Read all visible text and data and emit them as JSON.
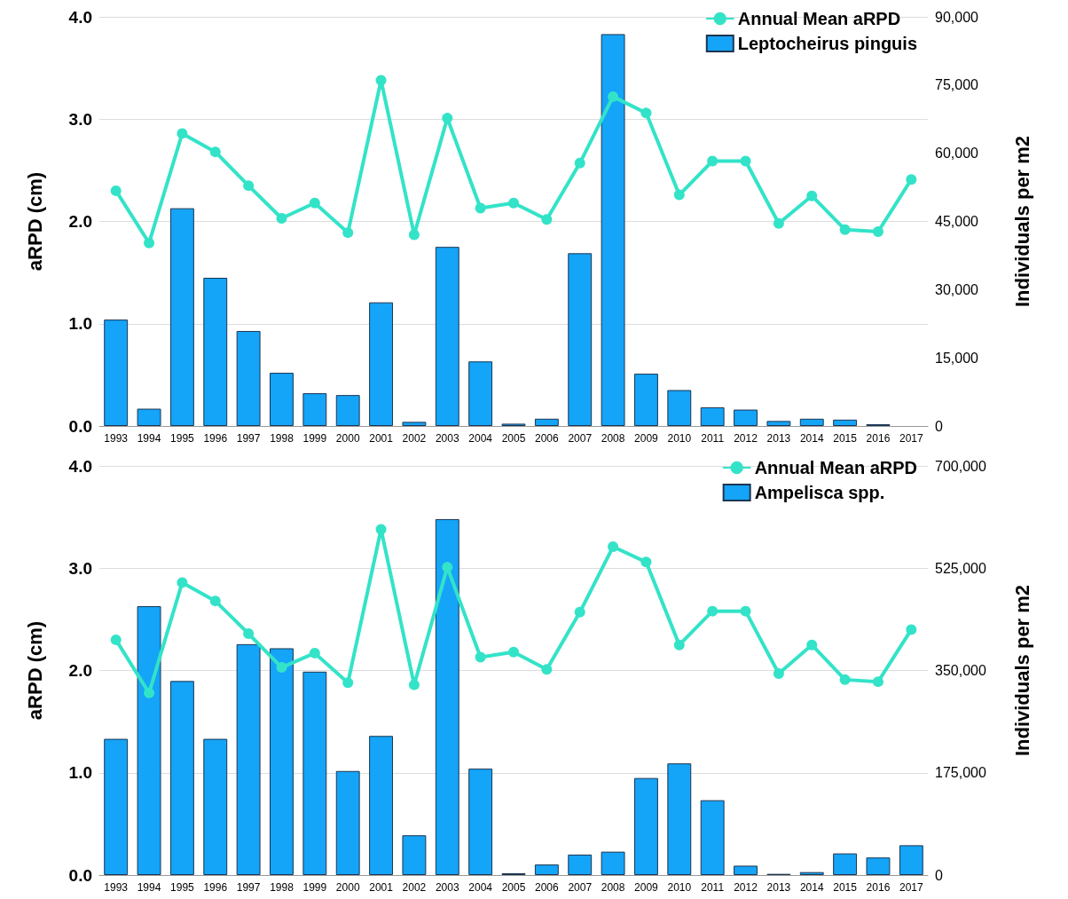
{
  "chart_data": [
    {
      "type": "bar",
      "ylabel": "aRPD (cm)",
      "y2label": "Individuals per m2",
      "categories": [
        "1993",
        "1994",
        "1995",
        "1996",
        "1997",
        "1998",
        "1999",
        "2000",
        "2001",
        "2002",
        "2003",
        "2004",
        "2005",
        "2006",
        "2007",
        "2008",
        "2009",
        "2010",
        "2011",
        "2012",
        "2013",
        "2014",
        "2015",
        "2016",
        "2017"
      ],
      "series": [
        {
          "name": "Annual Mean aRPD",
          "type": "line",
          "color": "#33e3c8",
          "values": [
            2.3,
            1.79,
            2.86,
            2.68,
            2.35,
            2.03,
            2.18,
            1.89,
            3.38,
            1.87,
            3.01,
            2.13,
            2.18,
            2.02,
            2.57,
            3.22,
            3.06,
            2.26,
            2.59,
            2.59,
            1.98,
            2.25,
            1.92,
            1.9,
            2.41
          ]
        },
        {
          "name": "Leptocheirus pinguis",
          "axis": "y2",
          "color": "#14a4f8",
          "values": [
            23400,
            3800,
            47900,
            32600,
            20900,
            11700,
            7200,
            6800,
            27200,
            900,
            39400,
            14200,
            500,
            1600,
            38000,
            86200,
            11500,
            7900,
            4100,
            3600,
            1100,
            1600,
            1400,
            400,
            null
          ]
        }
      ],
      "ylim": [
        0,
        4
      ],
      "yticks": [
        {
          "value": 0,
          "label": "0.0"
        },
        {
          "value": 1,
          "label": "1.0"
        },
        {
          "value": 2,
          "label": "2.0"
        },
        {
          "value": 3,
          "label": "3.0"
        },
        {
          "value": 4,
          "label": "4.0"
        }
      ],
      "y2lim": [
        0,
        90000
      ],
      "y2ticks": [
        0,
        {
          "value": 15000,
          "label": "15,000"
        },
        {
          "value": 30000,
          "label": "30,000"
        },
        {
          "value": 45000,
          "label": "45,000"
        },
        {
          "value": 60000,
          "label": "60,000"
        },
        {
          "value": 75000,
          "label": "75,000"
        },
        {
          "value": 90000,
          "label": "90,000"
        }
      ],
      "grid": "y",
      "legend": "top right",
      "marker": "circle"
    },
    {
      "type": "bar",
      "ylabel": "aRPD (cm)",
      "y2label": "Individuals per m2",
      "categories": [
        "1993",
        "1994",
        "1995",
        "1996",
        "1997",
        "1998",
        "1999",
        "2000",
        "2001",
        "2002",
        "2003",
        "2004",
        "2005",
        "2006",
        "2007",
        "2008",
        "2009",
        "2010",
        "2011",
        "2012",
        "2013",
        "2014",
        "2015",
        "2016",
        "2017"
      ],
      "series": [
        {
          "name": "Annual Mean aRPD",
          "type": "line",
          "color": "#33e3c8",
          "values": [
            2.3,
            1.78,
            2.86,
            2.68,
            2.36,
            2.03,
            2.17,
            1.88,
            3.38,
            1.86,
            3.01,
            2.13,
            2.18,
            2.01,
            2.57,
            3.21,
            3.06,
            2.25,
            2.58,
            2.58,
            1.97,
            2.25,
            1.91,
            1.89,
            2.4
          ]
        },
        {
          "name": "Ampelisca spp.",
          "axis": "y2",
          "color": "#14a4f8",
          "values": [
            233000,
            460000,
            332000,
            233000,
            395000,
            388000,
            348000,
            178000,
            238000,
            68000,
            609000,
            182000,
            3000,
            18000,
            35000,
            40000,
            166000,
            191000,
            128000,
            16000,
            2000,
            5000,
            37000,
            30000,
            51000
          ]
        }
      ],
      "ylim": [
        0,
        4
      ],
      "yticks": [
        {
          "value": 0,
          "label": "0.0"
        },
        {
          "value": 1,
          "label": "1.0"
        },
        {
          "value": 2,
          "label": "2.0"
        },
        {
          "value": 3,
          "label": "3.0"
        },
        {
          "value": 4,
          "label": "4.0"
        }
      ],
      "y2lim": [
        0,
        700000
      ],
      "y2ticks": [
        0,
        {
          "value": 175000,
          "label": "175,000"
        },
        {
          "value": 350000,
          "label": "350,000"
        },
        {
          "value": 525000,
          "label": "525,000"
        },
        {
          "value": 700000,
          "label": "700,000"
        }
      ],
      "grid": "y",
      "legend": "top right",
      "marker": "circle"
    }
  ]
}
